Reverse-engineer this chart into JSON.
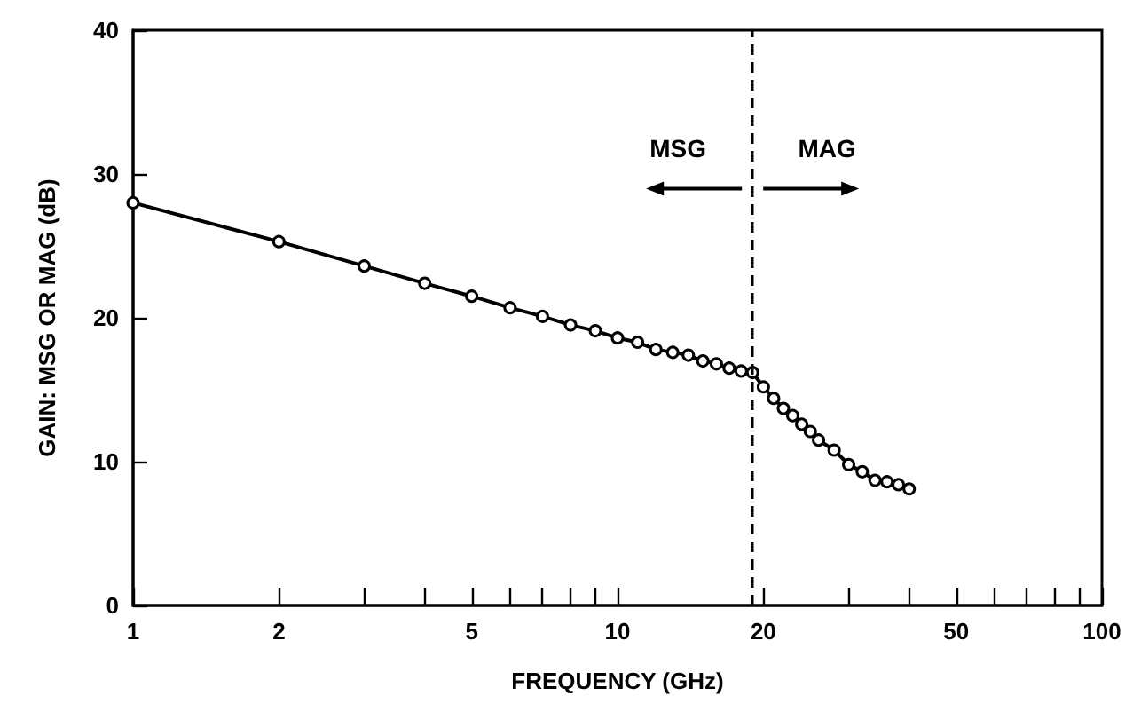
{
  "chart_data": {
    "type": "line",
    "xlabel": "FREQUENCY (GHz)",
    "ylabel": "GAIN: MSG OR MAG (dB)",
    "x": [
      1,
      2,
      3,
      4,
      5,
      6,
      7,
      8,
      9,
      10,
      11,
      12,
      13,
      14,
      15,
      16,
      17,
      18,
      19,
      20,
      21,
      22,
      23,
      24,
      25,
      26,
      28,
      30,
      32,
      34,
      36,
      38,
      40
    ],
    "series": [
      {
        "color": "#000000",
        "values": [
          28.0,
          25.3,
          23.6,
          22.4,
          21.5,
          20.7,
          20.1,
          19.5,
          19.1,
          18.6,
          18.3,
          17.8,
          17.6,
          17.4,
          17.0,
          16.8,
          16.5,
          16.3,
          16.2,
          15.2,
          14.4,
          13.7,
          13.2,
          12.6,
          12.1,
          11.5,
          10.8,
          9.8,
          9.3,
          8.7,
          8.6,
          8.4,
          8.1
        ]
      }
    ],
    "log": "x",
    "xlim": [
      1,
      100
    ],
    "xticks": [
      1,
      2,
      {
        "value": 3,
        "label": null
      },
      {
        "value": 4,
        "label": null
      },
      5,
      {
        "value": 6,
        "label": null
      },
      {
        "value": 7,
        "label": null
      },
      {
        "value": 8,
        "label": null
      },
      {
        "value": 9,
        "label": null
      },
      10,
      20,
      {
        "value": 30,
        "label": null
      },
      {
        "value": 40,
        "label": null
      },
      50,
      {
        "value": 60,
        "label": null
      },
      {
        "value": 70,
        "label": null
      },
      {
        "value": 80,
        "label": null
      },
      {
        "value": 90,
        "label": null
      },
      100
    ],
    "ylim": [
      0,
      40
    ],
    "yticks": [
      0,
      10,
      20,
      30,
      40
    ],
    "ref_lines": [
      {
        "axis": "x",
        "value": 19,
        "line_style": "dashed",
        "color": "#000000"
      }
    ],
    "annotations": [
      "MSG",
      "MAG"
    ],
    "marker": "circle",
    "line_style": "solid"
  }
}
